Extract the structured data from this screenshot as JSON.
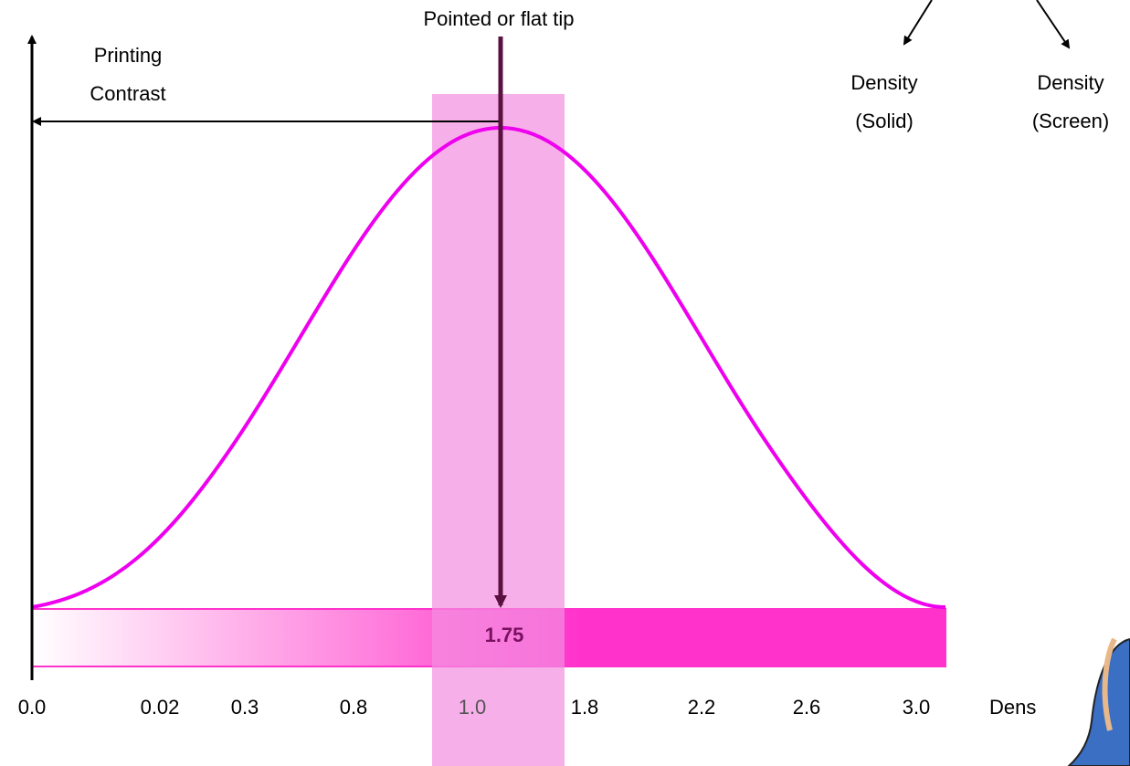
{
  "tip_label": "Pointed or flat tip",
  "y_axis_label": [
    "Printing",
    "Contrast"
  ],
  "density_solid": [
    "Density",
    "(Solid)"
  ],
  "density_screen": [
    "Density",
    "(Screen)"
  ],
  "band_value": "1.75",
  "x_axis_labels": [
    "0.0",
    "0.02",
    "0.3",
    "0.8",
    "1.0",
    "1.8",
    "2.2",
    "2.6",
    "3.0"
  ],
  "x_axis_title": "Dens"
}
